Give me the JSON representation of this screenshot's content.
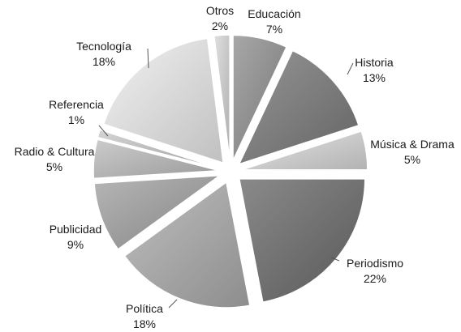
{
  "chart_data": {
    "type": "pie",
    "title": "",
    "exploded": true,
    "slices": [
      {
        "label": "Educación",
        "value": 7,
        "pct_text": "7%",
        "color": "#8c8c8c"
      },
      {
        "label": "Historia",
        "value": 13,
        "pct_text": "13%",
        "color": "#7a7a7a"
      },
      {
        "label": "Música & Drama",
        "value": 5,
        "pct_text": "5%",
        "color": "#c8c8c8"
      },
      {
        "label": "Periodismo",
        "value": 22,
        "pct_text": "22%",
        "color": "#6e6e6e"
      },
      {
        "label": "Política",
        "value": 18,
        "pct_text": "18%",
        "color": "#a3a3a3"
      },
      {
        "label": "Publicidad",
        "value": 9,
        "pct_text": "9%",
        "color": "#9a9a9a"
      },
      {
        "label": "Radio & Cultura",
        "value": 5,
        "pct_text": "5%",
        "color": "#b0b0b0"
      },
      {
        "label": "Referencia",
        "value": 1,
        "pct_text": "1%",
        "color": "#b8b8b8"
      },
      {
        "label": "Tecnología",
        "value": 18,
        "pct_text": "18%",
        "color": "#d6d6d6"
      },
      {
        "label": "Otros",
        "value": 2,
        "pct_text": "2%",
        "color": "#c4c4c4"
      }
    ]
  }
}
